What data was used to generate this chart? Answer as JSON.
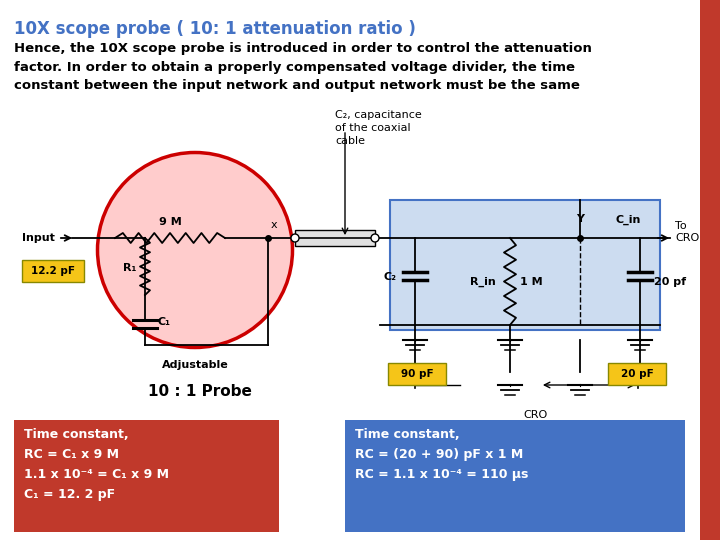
{
  "title": "10X scope probe ( 10: 1 attenuation ratio )",
  "title_color": "#4472C4",
  "body_text": "Hence, the 10X scope probe is introduced in order to control the attenuation\nfactor. In order to obtain a properly compensated voltage divider, the time\nconstant between the input network and output network must be the same",
  "background_color": "#FFFFFF",
  "right_bar_color": "#C0392B",
  "red_box_color": "#C0392B",
  "blue_box_color": "#4472C4",
  "ellipse_fill": "#FFCCCC",
  "ellipse_edge": "#CC0000",
  "cro_rect_fill": "#CCDCF0",
  "cro_rect_edge": "#4472C4",
  "yellow_fill": "#F5C518",
  "yellow_edge": "#888800",
  "annotation_c2": "C₂, capacitance\nof the coaxial\ncable",
  "label_90pf": "90 pF",
  "label_20pf": "20 pF",
  "label_122pf": "12.2 pF",
  "label_probe": "10 : 1 Probe",
  "red_box_text": "Time constant,\nRC = C₁ x 9 M\n1.1 x 10⁻⁴ = C₁ x 9 M\nC₁ = 12. 2 pF",
  "blue_box_text": "Time constant,\nRC = (20 + 90) pF x 1 M\nRC = 1.1 x 10⁻⁴ = 110 μs"
}
